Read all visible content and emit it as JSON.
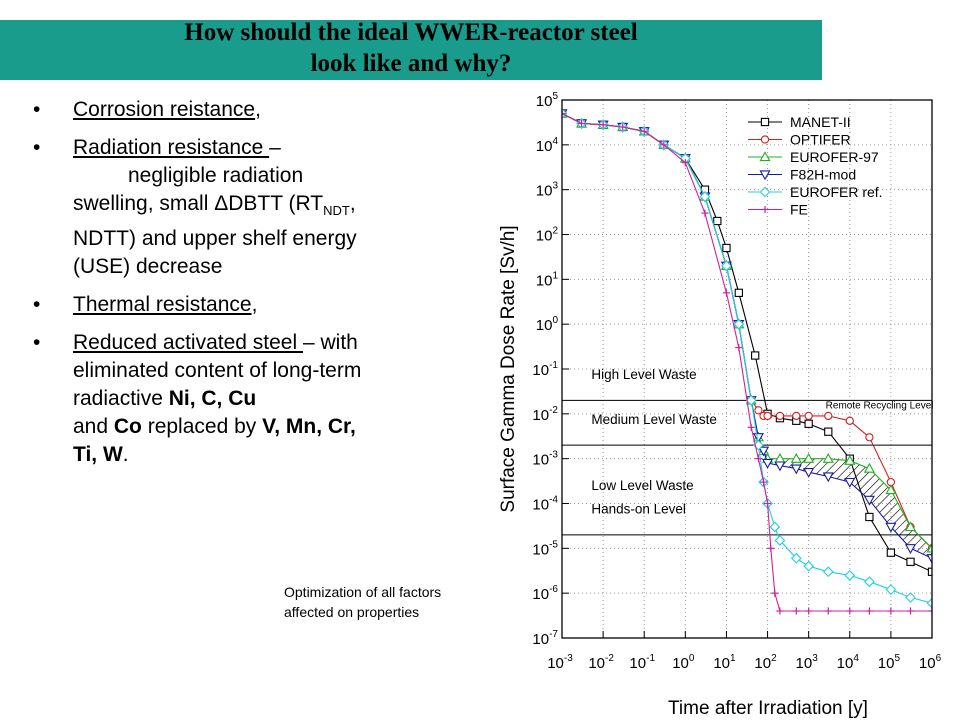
{
  "slide": {
    "title_line1": "How should the ideal WWER-reactor steel",
    "title_line2": "look like and why?",
    "title_bar_color": "#1a9c8d"
  },
  "bullets": {
    "corrosion": {
      "label": "Corrosion reistance",
      "tail": ","
    },
    "radiation": {
      "label": "Radiation resistance ",
      "dash": "–",
      "text1": "negligible radiation",
      "text2": "swelling, small ΔDBTT (RT",
      "sub": "NDT",
      "text3": ",",
      "text4": "NDTT) and upper shelf energy",
      "text5": "(USE) decrease"
    },
    "thermal": {
      "label": "Thermal resistance",
      "tail": ","
    },
    "activation": {
      "label": "Reduced activated steel ",
      "dash": "– with",
      "text1": "eliminated content of long-term",
      "text2": "radiactive ",
      "elements1": "Ni, C, Cu",
      "text3": "and ",
      "co": "Co",
      "text4": " replaced by ",
      "elements2": "V, Mn, Cr,",
      "elements3": "Ti, W",
      "end": "."
    }
  },
  "note": {
    "line1": "Optimization of all factors",
    "line2": "affected on properties"
  },
  "chart_data": {
    "type": "line",
    "xscale": "log",
    "yscale": "log",
    "xlim": [
      0.001,
      1000000
    ],
    "ylim": [
      1e-07,
      100000
    ],
    "xlabel": "Time after Irradiation [y]",
    "ylabel": "Surface Gamma Dose Rate [Sv/h]",
    "x_ticks": [
      {
        "base": "10",
        "exp": "-3"
      },
      {
        "base": "10",
        "exp": "-2"
      },
      {
        "base": "10",
        "exp": "-1"
      },
      {
        "base": "10",
        "exp": "0"
      },
      {
        "base": "10",
        "exp": "1"
      },
      {
        "base": "10",
        "exp": "2"
      },
      {
        "base": "10",
        "exp": "3"
      },
      {
        "base": "10",
        "exp": "4"
      },
      {
        "base": "10",
        "exp": "5"
      },
      {
        "base": "10",
        "exp": "6"
      }
    ],
    "y_ticks": [
      {
        "base": "10",
        "exp": "5"
      },
      {
        "base": "10",
        "exp": "4"
      },
      {
        "base": "10",
        "exp": "3"
      },
      {
        "base": "10",
        "exp": "2"
      },
      {
        "base": "10",
        "exp": "1"
      },
      {
        "base": "10",
        "exp": "0"
      },
      {
        "base": "10",
        "exp": "-1"
      },
      {
        "base": "10",
        "exp": "-2"
      },
      {
        "base": "10",
        "exp": "-3"
      },
      {
        "base": "10",
        "exp": "-4"
      },
      {
        "base": "10",
        "exp": "-5"
      },
      {
        "base": "10",
        "exp": "-6"
      },
      {
        "base": "10",
        "exp": "-7"
      }
    ],
    "grid": "dotted",
    "legend_position": "top-right",
    "levels": [
      {
        "name": "High Level Waste",
        "value": 0.02
      },
      {
        "name": "Medium Level Waste",
        "value": 0.002
      },
      {
        "name": "Hands-on Level",
        "value": 2e-05
      }
    ],
    "region_labels": [
      {
        "text": "High Level Waste",
        "x": 0.002,
        "y": 0.06
      },
      {
        "text": "Medium Level Waste",
        "x": 0.002,
        "y": 0.006
      },
      {
        "text": "Low Level Waste",
        "x": 0.002,
        "y": 0.0002
      },
      {
        "text": "Hands-on Level",
        "x": 0.002,
        "y": 6e-05
      },
      {
        "text": "Remote Recycling Level",
        "x": 1000,
        "y": 0.013
      }
    ],
    "hatched_band": {
      "upper_series": "EUROFER-97",
      "lower_series": "F82H-mod",
      "from_x": 100,
      "to_x": 1000000
    },
    "series": [
      {
        "name": "MANET-II",
        "color": "#000000",
        "marker": "square",
        "x": [
          0.001,
          0.003,
          0.01,
          0.03,
          0.1,
          0.3,
          1,
          3,
          6,
          10,
          20,
          50,
          100,
          200,
          500,
          1000,
          3000,
          10000,
          30000,
          100000,
          300000,
          1000000
        ],
        "y": [
          50000,
          30000,
          28000,
          25000,
          20000,
          10000,
          5000,
          1000,
          200,
          50,
          5,
          0.2,
          0.01,
          0.008,
          0.007,
          0.006,
          0.004,
          0.001,
          5e-05,
          8e-06,
          5e-06,
          3e-06
        ]
      },
      {
        "name": "OPTIFER",
        "color": "#d02020",
        "marker": "circle",
        "x": [
          0.001,
          0.003,
          0.01,
          0.03,
          0.1,
          0.3,
          1,
          3,
          10,
          20,
          40,
          60,
          80,
          100,
          200,
          500,
          1000,
          3000,
          10000,
          30000,
          100000,
          300000,
          1000000
        ],
        "y": [
          50000,
          30000,
          28000,
          25000,
          20000,
          10000,
          5000,
          700,
          20,
          1,
          0.02,
          0.012,
          0.009,
          0.009,
          0.009,
          0.009,
          0.009,
          0.009,
          0.007,
          0.003,
          0.0003,
          3e-05,
          1e-05
        ]
      },
      {
        "name": "EUROFER-97",
        "color": "#20b020",
        "marker": "triangle-up",
        "x": [
          0.001,
          0.003,
          0.01,
          0.03,
          0.1,
          0.3,
          1,
          3,
          10,
          20,
          40,
          60,
          80,
          100,
          200,
          500,
          1000,
          3000,
          10000,
          30000,
          100000,
          300000,
          1000000
        ],
        "y": [
          50000,
          30000,
          28000,
          25000,
          20000,
          10000,
          5000,
          700,
          20,
          1,
          0.02,
          0.003,
          0.0015,
          0.001,
          0.001,
          0.001,
          0.001,
          0.001,
          0.0009,
          0.0006,
          0.0002,
          3e-05,
          1e-05
        ]
      },
      {
        "name": "F82H-mod",
        "color": "#1a1aa0",
        "marker": "triangle-down",
        "x": [
          0.001,
          0.003,
          0.01,
          0.03,
          0.1,
          0.3,
          1,
          3,
          10,
          20,
          40,
          60,
          80,
          100,
          200,
          500,
          1000,
          3000,
          10000,
          30000,
          100000,
          300000,
          1000000
        ],
        "y": [
          50000,
          30000,
          28000,
          25000,
          20000,
          10000,
          5000,
          700,
          20,
          1,
          0.02,
          0.003,
          0.0015,
          0.0008,
          0.0007,
          0.0006,
          0.0005,
          0.0004,
          0.0003,
          0.00012,
          3e-05,
          1e-05,
          6e-06
        ]
      },
      {
        "name": "EUROFER ref.",
        "color": "#20d0e0",
        "marker": "diamond",
        "x": [
          0.001,
          0.003,
          0.01,
          0.03,
          0.1,
          0.3,
          1,
          3,
          10,
          20,
          40,
          60,
          80,
          100,
          150,
          200,
          500,
          1000,
          3000,
          10000,
          30000,
          100000,
          300000,
          1000000
        ],
        "y": [
          50000,
          30000,
          28000,
          25000,
          20000,
          10000,
          5000,
          700,
          20,
          1,
          0.02,
          0.002,
          0.0003,
          0.0001,
          3e-05,
          1.5e-05,
          6e-06,
          4e-06,
          3e-06,
          2.5e-06,
          1.8e-06,
          1.2e-06,
          8e-07,
          6e-07
        ]
      },
      {
        "name": "FE",
        "color": "#d020a0",
        "marker": "plus",
        "x": [
          0.001,
          0.003,
          0.01,
          0.03,
          0.1,
          0.3,
          1,
          3,
          10,
          20,
          40,
          60,
          80,
          100,
          120,
          150,
          200,
          500,
          1000,
          3000,
          10000,
          30000,
          100000,
          300000,
          1000000
        ],
        "y": [
          50000,
          30000,
          28000,
          25000,
          20000,
          10000,
          4000,
          300,
          5,
          0.3,
          0.005,
          0.001,
          0.0003,
          0.0001,
          1e-05,
          1e-06,
          4e-07,
          4e-07,
          4e-07,
          4e-07,
          4e-07,
          4e-07,
          4e-07,
          4e-07,
          4e-07
        ]
      }
    ]
  }
}
